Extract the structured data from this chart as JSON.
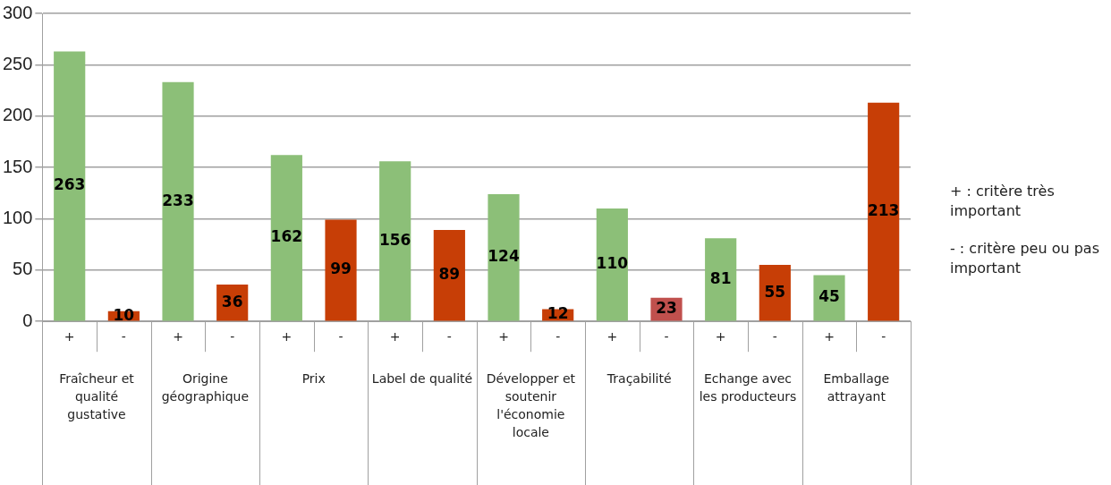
{
  "chart_data": {
    "type": "bar",
    "categories": [
      "+",
      "-",
      "+",
      "-",
      "+",
      "-",
      "+",
      "-",
      "+",
      "-",
      "+",
      "-",
      "+",
      "-",
      "+",
      "-"
    ],
    "values": [
      263,
      10,
      233,
      36,
      162,
      99,
      156,
      89,
      124,
      12,
      110,
      23,
      81,
      55,
      45,
      213
    ],
    "data_labels": true,
    "colors": [
      "#8cbf78",
      "#c73e06",
      "#8cbf78",
      "#c73e06",
      "#8cbf78",
      "#c73e06",
      "#8cbf78",
      "#c73e06",
      "#8cbf78",
      "#c73e06",
      "#8cbf78",
      "#c0504d",
      "#8cbf78",
      "#c73e06",
      "#8cbf78",
      "#c73e06"
    ],
    "ylim": [
      0,
      300
    ],
    "yticks": [
      0,
      50,
      100,
      150,
      200,
      250,
      300
    ],
    "grid": "y",
    "legend": false,
    "annotations": [
      "Fraîcheur et qualité gustative",
      "Origine géographique",
      "Prix",
      "Label de qualité",
      "Développer et soutenir l'économie locale",
      "Traçabilité",
      "Echange avec les producteurs",
      "Emballage attrayant",
      "+ : critère très important",
      "- : critère peu ou pas important"
    ]
  }
}
